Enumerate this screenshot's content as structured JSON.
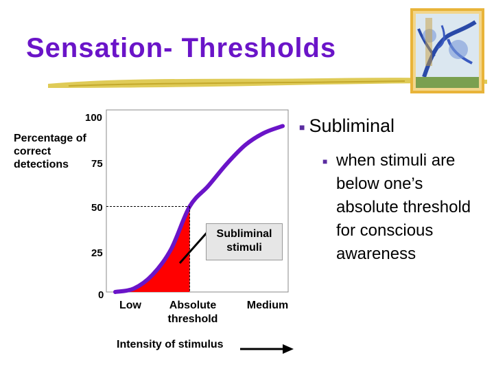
{
  "slide": {
    "title": "Sensation- Thresholds",
    "colors": {
      "title": "#6a14c8",
      "curve": "#6a14c8",
      "fill": "#ff0000",
      "underline": "#d9c23a"
    }
  },
  "chart_data": {
    "type": "line",
    "ylabel": "Percentage of correct detections",
    "xlabel": "Intensity of stimulus",
    "y_ticks": [
      "100",
      "75",
      "50",
      "25",
      "0"
    ],
    "x_labels": [
      "Low",
      "Absolute threshold",
      "Medium"
    ],
    "ylim": [
      0,
      100
    ],
    "annotation": "Subliminal stimuli",
    "curve_y": [
      0,
      2,
      10,
      25,
      50,
      62,
      75,
      86,
      93,
      97
    ],
    "threshold_point": {
      "x_label": "Absolute threshold",
      "y": 50
    }
  },
  "bullets": {
    "main": "Subliminal",
    "sub": "when stimuli are below one’s absolute threshold for conscious awareness"
  },
  "decor": {
    "thumbnail_icon": "tree-illustration-icon"
  }
}
